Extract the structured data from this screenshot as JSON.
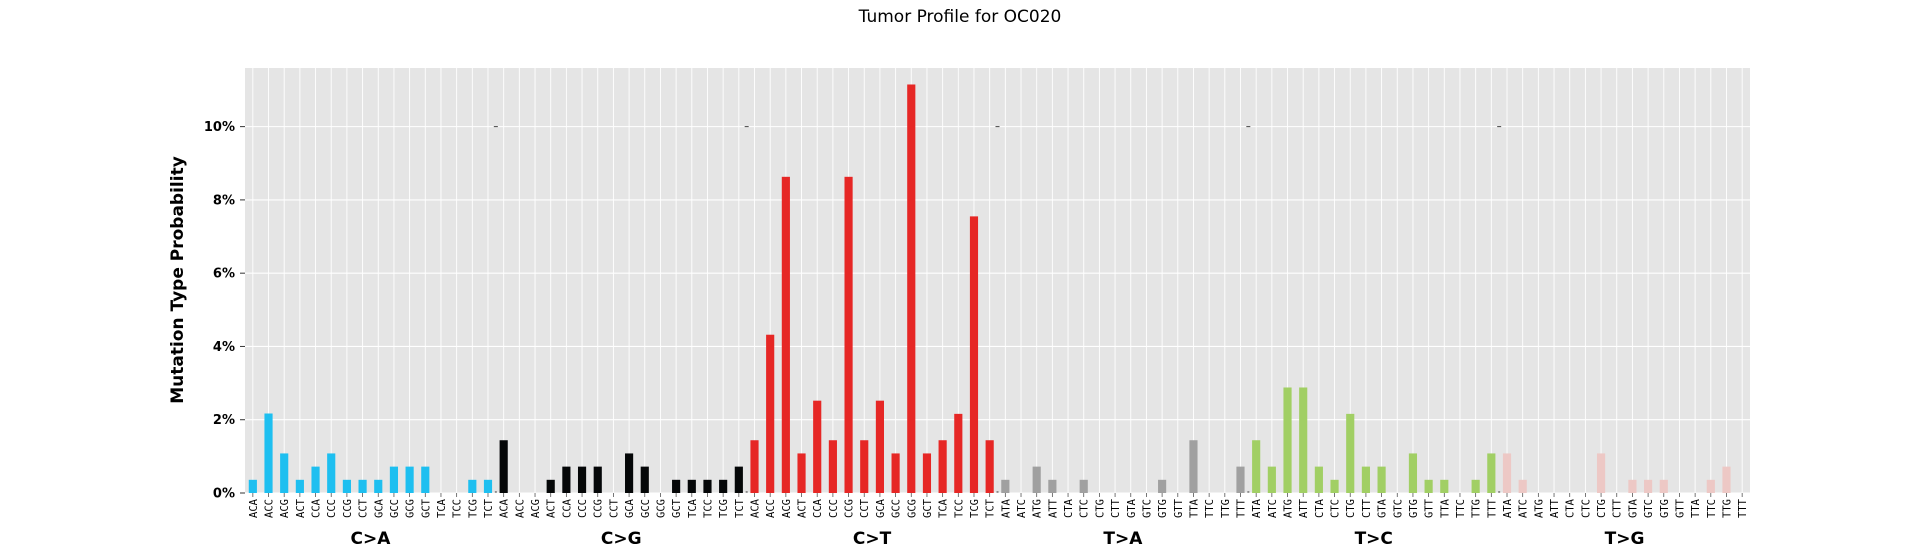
{
  "chart_data": {
    "type": "bar",
    "title": "Tumor Profile for OC020",
    "xlabel": "",
    "ylabel": "Mutation Type Probability",
    "y_unit": "%",
    "ylim": [
      0,
      11.6
    ],
    "yticks": [
      0,
      2,
      4,
      6,
      8,
      10
    ],
    "ytick_labels": [
      "0%",
      "2%",
      "4%",
      "6%",
      "8%",
      "10%"
    ],
    "grid": true,
    "legend": "none",
    "groups": [
      {
        "name": "C>A",
        "color": "#1EBFF0",
        "contexts": [
          "ACA",
          "ACC",
          "ACG",
          "ACT",
          "CCA",
          "CCC",
          "CCG",
          "CCT",
          "GCA",
          "GCC",
          "GCG",
          "GCT",
          "TCA",
          "TCC",
          "TCG",
          "TCT"
        ],
        "values": [
          0.36,
          2.17,
          1.08,
          0.36,
          0.72,
          1.08,
          0.36,
          0.36,
          0.36,
          0.72,
          0.72,
          0.72,
          0,
          0,
          0.36,
          0.36
        ]
      },
      {
        "name": "C>G",
        "color": "#050708",
        "contexts": [
          "ACA",
          "ACC",
          "ACG",
          "ACT",
          "CCA",
          "CCC",
          "CCG",
          "CCT",
          "GCA",
          "GCC",
          "GCG",
          "GCT",
          "TCA",
          "TCC",
          "TCG",
          "TCT"
        ],
        "values": [
          1.44,
          0,
          0,
          0.36,
          0.72,
          0.72,
          0.72,
          0,
          1.08,
          0.72,
          0,
          0.36,
          0.36,
          0.36,
          0.36,
          0.72
        ]
      },
      {
        "name": "C>T",
        "color": "#E62725",
        "contexts": [
          "ACA",
          "ACC",
          "ACG",
          "ACT",
          "CCA",
          "CCC",
          "CCG",
          "CCT",
          "GCA",
          "GCC",
          "GCG",
          "GCT",
          "TCA",
          "TCC",
          "TCG",
          "TCT"
        ],
        "values": [
          1.44,
          4.32,
          8.63,
          1.08,
          2.52,
          1.44,
          8.63,
          1.44,
          2.52,
          1.08,
          11.15,
          1.08,
          1.44,
          2.16,
          7.55,
          1.44
        ]
      },
      {
        "name": "T>A",
        "color": "#A0A0A0",
        "contexts": [
          "ATA",
          "ATC",
          "ATG",
          "ATT",
          "CTA",
          "CTC",
          "CTG",
          "CTT",
          "GTA",
          "GTC",
          "GTG",
          "GTT",
          "TTA",
          "TTC",
          "TTG",
          "TTT"
        ],
        "values": [
          0.36,
          0,
          0.72,
          0.36,
          0,
          0.36,
          0,
          0,
          0,
          0,
          0.36,
          0,
          1.44,
          0,
          0,
          0.72
        ]
      },
      {
        "name": "T>C",
        "color": "#A1CF64",
        "contexts": [
          "ATA",
          "ATC",
          "ATG",
          "ATT",
          "CTA",
          "CTC",
          "CTG",
          "CTT",
          "GTA",
          "GTC",
          "GTG",
          "GTT",
          "TTA",
          "TTC",
          "TTG",
          "TTT"
        ],
        "values": [
          1.44,
          0.72,
          2.88,
          2.88,
          0.72,
          0.36,
          2.16,
          0.72,
          0.72,
          0,
          1.08,
          0.36,
          0.36,
          0,
          0.36,
          1.08
        ]
      },
      {
        "name": "T>G",
        "color": "#EDC8C5",
        "contexts": [
          "ATA",
          "ATC",
          "ATG",
          "ATT",
          "CTA",
          "CTC",
          "CTG",
          "CTT",
          "GTA",
          "GTC",
          "GTG",
          "GTT",
          "TTA",
          "TTC",
          "TTG",
          "TTT"
        ],
        "values": [
          1.08,
          0.36,
          0,
          0,
          0,
          0,
          1.08,
          0,
          0.36,
          0.36,
          0.36,
          0,
          0,
          0.36,
          0.72,
          0
        ]
      }
    ]
  }
}
